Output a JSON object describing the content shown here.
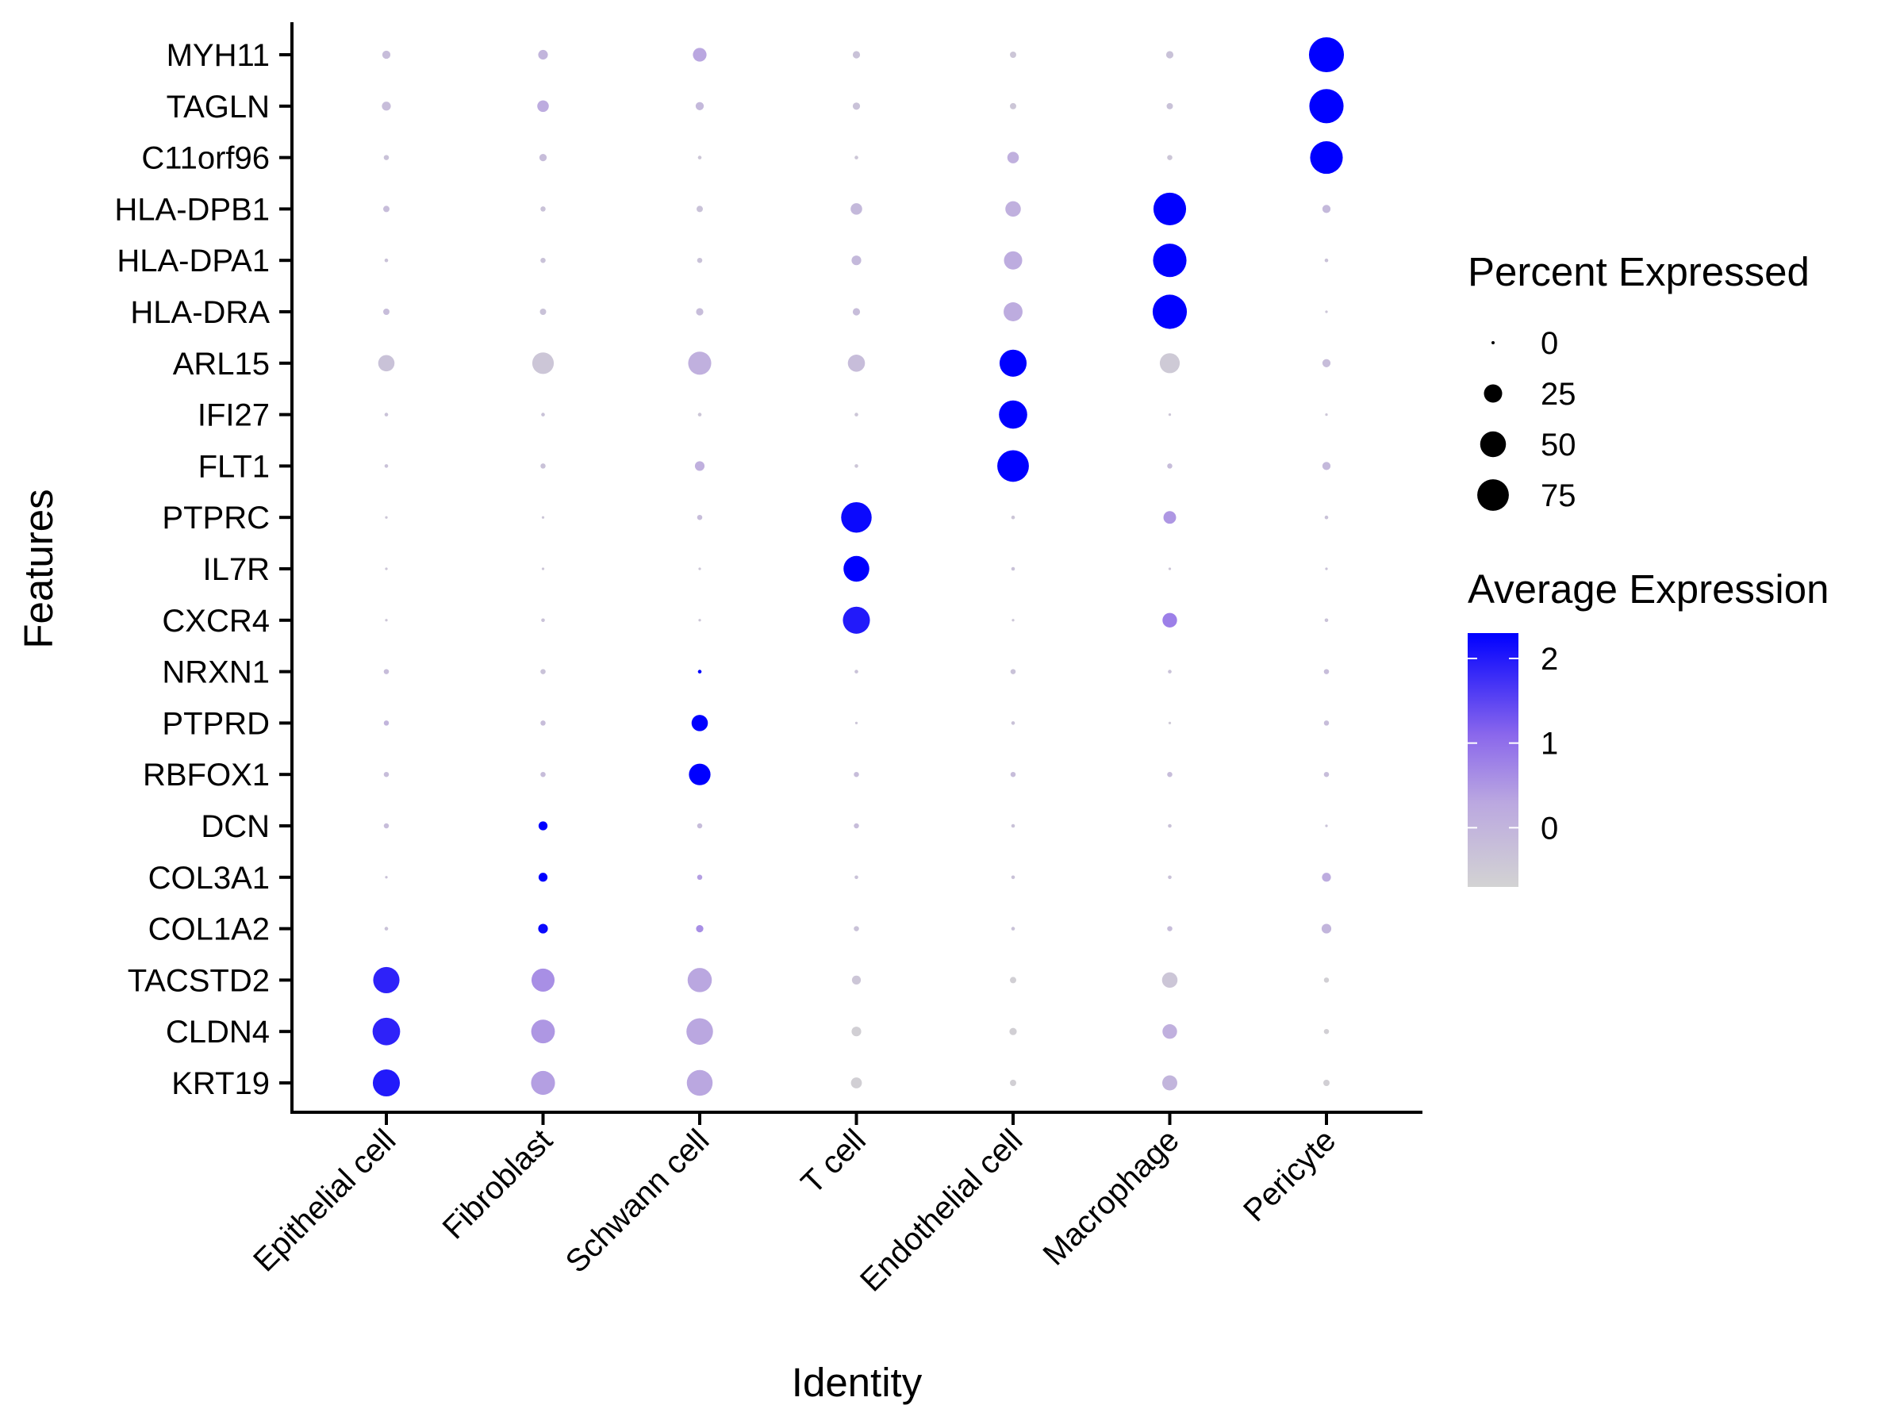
{
  "chart_data": {
    "type": "scatter",
    "subtype": "dot-plot",
    "title": "",
    "xlabel": "Identity",
    "ylabel": "Features",
    "categories": [
      "Epithelial cell",
      "Fibroblast",
      "Schwann cell",
      "T cell",
      "Endothelial cell",
      "Macrophage",
      "Pericyte"
    ],
    "features": [
      "MYH11",
      "TAGLN",
      "C11orf96",
      "HLA-DPB1",
      "HLA-DPA1",
      "HLA-DRA",
      "ARL15",
      "IFI27",
      "FLT1",
      "PTPRC",
      "IL7R",
      "CXCR4",
      "NRXN1",
      "PTPRD",
      "RBFOX1",
      "DCN",
      "COL3A1",
      "COL1A2",
      "TACSTD2",
      "CLDN4",
      "KRT19"
    ],
    "percent_expressed": [
      [
        5,
        7,
        14,
        4,
        3,
        4,
        92
      ],
      [
        6,
        10,
        5,
        4,
        3,
        3,
        88
      ],
      [
        2,
        4,
        1,
        1,
        10,
        2,
        80
      ],
      [
        3,
        2,
        3,
        10,
        18,
        80,
        5
      ],
      [
        1,
        2,
        2,
        7,
        25,
        84,
        1
      ],
      [
        3,
        3,
        4,
        4,
        27,
        88,
        0.5
      ],
      [
        20,
        35,
        40,
        22,
        55,
        30,
        5
      ],
      [
        1,
        1,
        1,
        1,
        60,
        0.5,
        0.5
      ],
      [
        1,
        2,
        7,
        1,
        75,
        2,
        5
      ],
      [
        0.5,
        0.5,
        2,
        70,
        1,
        12,
        1
      ],
      [
        0.5,
        0.5,
        0.5,
        50,
        1,
        0.5,
        0.5
      ],
      [
        0.5,
        1,
        0.5,
        55,
        0.5,
        16,
        1
      ],
      [
        2,
        2,
        1,
        1,
        2,
        1,
        2
      ],
      [
        2,
        2,
        20,
        0.5,
        1,
        0.5,
        2
      ],
      [
        2,
        2,
        35,
        2,
        2,
        2,
        2
      ],
      [
        2,
        6,
        2,
        2,
        1,
        1,
        0.5
      ],
      [
        0.5,
        6,
        2,
        1,
        1,
        1,
        6
      ],
      [
        1,
        7,
        4,
        2,
        1,
        2,
        7
      ],
      [
        52,
        40,
        44,
        6,
        3,
        18,
        2
      ],
      [
        57,
        42,
        53,
        7,
        4,
        16,
        2
      ],
      [
        55,
        43,
        50,
        9,
        3,
        17,
        3
      ]
    ],
    "average_expression": [
      [
        -0.2,
        0,
        0.3,
        -0.3,
        -0.4,
        -0.3,
        2.3
      ],
      [
        -0.2,
        0.2,
        -0.1,
        -0.3,
        -0.4,
        -0.3,
        2.3
      ],
      [
        -0.3,
        -0.2,
        -0.4,
        -0.4,
        0.1,
        -0.4,
        2.3
      ],
      [
        -0.2,
        -0.3,
        -0.3,
        -0.1,
        0.1,
        2.3,
        -0.1
      ],
      [
        -0.3,
        -0.3,
        -0.3,
        -0.1,
        0.2,
        2.3,
        -0.3
      ],
      [
        -0.2,
        -0.3,
        -0.2,
        -0.2,
        0.2,
        2.3,
        -0.4
      ],
      [
        -0.3,
        -0.4,
        0.1,
        -0.2,
        2.3,
        -0.5,
        -0.2
      ],
      [
        -0.3,
        -0.3,
        -0.4,
        -0.4,
        2.3,
        -0.4,
        -0.4
      ],
      [
        -0.3,
        -0.3,
        0.1,
        -0.4,
        2.3,
        -0.2,
        -0.1
      ],
      [
        -0.4,
        -0.4,
        -0.2,
        2.2,
        -0.4,
        0.5,
        -0.3
      ],
      [
        -0.4,
        -0.4,
        -0.4,
        2.3,
        -0.3,
        -0.4,
        -0.3
      ],
      [
        -0.4,
        -0.3,
        -0.4,
        2.0,
        -0.4,
        0.8,
        -0.3
      ],
      [
        -0.2,
        -0.3,
        2.3,
        -0.3,
        -0.3,
        -0.3,
        -0.2
      ],
      [
        0,
        -0.2,
        2.3,
        -0.4,
        -0.3,
        -0.5,
        -0.2
      ],
      [
        -0.2,
        -0.2,
        2.3,
        -0.2,
        -0.2,
        -0.2,
        -0.2
      ],
      [
        -0.2,
        2.3,
        -0.2,
        -0.2,
        -0.3,
        -0.3,
        -0.3
      ],
      [
        -0.3,
        2.3,
        0.4,
        -0.3,
        -0.3,
        -0.3,
        0.2
      ],
      [
        -0.3,
        2.2,
        0.6,
        -0.3,
        -0.3,
        -0.2,
        0.0
      ],
      [
        1.9,
        0.6,
        0.3,
        -0.4,
        -0.6,
        -0.4,
        -0.6
      ],
      [
        1.9,
        0.5,
        0.3,
        -0.6,
        -0.6,
        0.1,
        -0.6
      ],
      [
        2.0,
        0.4,
        0.3,
        -0.6,
        -0.6,
        0.0,
        -0.6
      ]
    ],
    "size_legend": {
      "title": "Percent Expressed",
      "breaks": [
        0,
        25,
        50,
        75
      ],
      "labels": [
        "0",
        "25",
        "50",
        "75"
      ]
    },
    "color_legend": {
      "title": "Average Expression",
      "breaks": [
        2,
        1,
        0
      ],
      "labels": [
        "2",
        "1",
        "0"
      ],
      "range": [
        -0.7,
        2.3
      ],
      "low_color": "#d3d3d3",
      "high_color": "#0000ff"
    },
    "grid": false,
    "legend_position": "right"
  }
}
